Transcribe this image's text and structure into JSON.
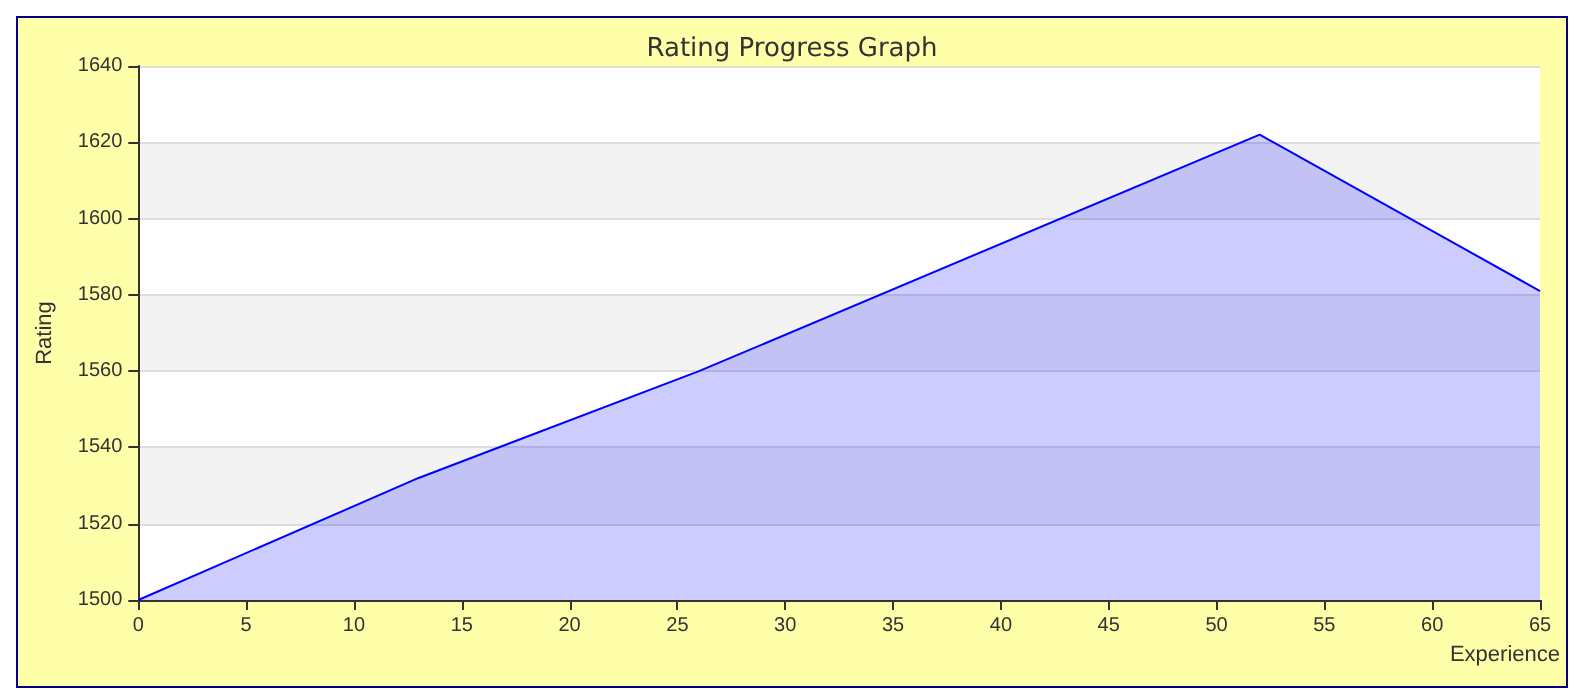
{
  "chart_data": {
    "type": "area",
    "title": "Rating Progress Graph",
    "xlabel": "Experience",
    "ylabel": "Rating",
    "x": [
      0,
      13,
      26,
      52,
      65
    ],
    "series": [
      {
        "color": "#0000ff",
        "values": [
          1500,
          1532,
          1560,
          1622,
          1581
        ]
      }
    ],
    "xlim": [
      0,
      65
    ],
    "xticks": [
      0,
      5,
      10,
      15,
      20,
      25,
      30,
      35,
      40,
      45,
      50,
      55,
      60,
      65
    ],
    "ylim": [
      1500,
      1640
    ],
    "yticks": [
      1500,
      1520,
      1540,
      1560,
      1580,
      1600,
      1620,
      1640
    ],
    "grid": "y",
    "marker": "none",
    "line_style": "solid"
  }
}
